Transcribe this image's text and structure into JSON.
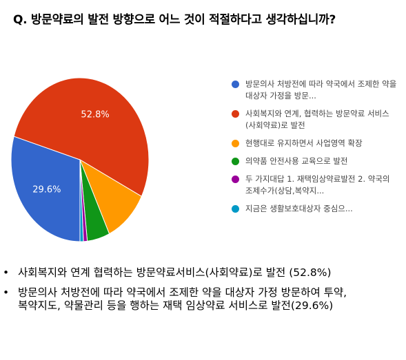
{
  "question": "Q. 방문약료의 발전 방향으로 어느 것이 적절하다고 생각하십니까?",
  "chart_data": {
    "type": "pie",
    "slices": [
      {
        "label": "방문의사 처방전에 따라 약국에서 조제한 약을 대상자 가정을 방문...",
        "value": 29.6,
        "color": "#3366cc",
        "value_label": "29.6%"
      },
      {
        "label": "사회복지와 연계, 협력하는 방문약료 서비스(사회약료)로 발전",
        "value": 52.8,
        "color": "#dc3912",
        "value_label": "52.8%"
      },
      {
        "label": "현행대로 유지하면서 사업영역 확장",
        "value": 10.6,
        "color": "#ff9900",
        "value_label": ""
      },
      {
        "label": "의약품 안전사용 교육으로 발전",
        "value": 5.3,
        "color": "#109618",
        "value_label": ""
      },
      {
        "label": "두 가지대답 1. 재택임상약료발전 2. 약국의 조제수가(상담,복약지...",
        "value": 0.9,
        "color": "#990099",
        "value_label": ""
      },
      {
        "label": "지금은 생활보호대상자 중심으...",
        "value": 0.8,
        "color": "#0099c6",
        "value_label": ""
      }
    ],
    "start_angle_deg": 90,
    "direction": "clockwise",
    "legend_position": "right"
  },
  "bullets": [
    {
      "text": "사회복지와 연계 협력하는 방문약료서비스(사회약료)로 발전 (52.8%)"
    },
    {
      "text": "방문의사 처방전에 따라 약국에서 조제한 약을 대상자 가정 방문하여 투약, 복약지도, 약물관리 등을 행하는 재택 임상약료 서비스로 발전(29.6%)"
    }
  ],
  "bullet_symbol": "•"
}
